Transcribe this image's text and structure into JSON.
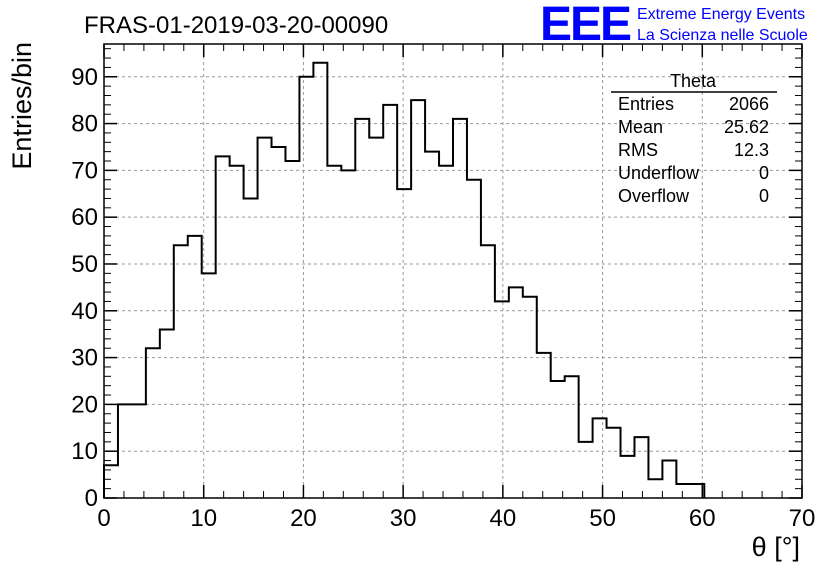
{
  "title": "FRAS-01-2019-03-20-00090",
  "logo": {
    "mark": "EEE",
    "line1": "Extreme Energy Events",
    "line2": "La Scienza nelle Scuole",
    "color": "#0000ff"
  },
  "stats": {
    "name": "Theta",
    "rows": [
      {
        "label": "Entries",
        "value": "2066"
      },
      {
        "label": "Mean",
        "value": "25.62"
      },
      {
        "label": "RMS",
        "value": "12.3"
      },
      {
        "label": "Underflow",
        "value": "0"
      },
      {
        "label": "Overflow",
        "value": "0"
      }
    ]
  },
  "chart_data": {
    "type": "histogram",
    "title": "FRAS-01-2019-03-20-00090",
    "xlabel": "θ [°]",
    "ylabel": "Entries/bin",
    "xlim": [
      0,
      70
    ],
    "ylim": [
      0,
      97
    ],
    "xticks": [
      0,
      10,
      20,
      30,
      40,
      50,
      60,
      70
    ],
    "yticks": [
      0,
      10,
      20,
      30,
      40,
      50,
      60,
      70,
      80,
      90
    ],
    "grid": true,
    "bin_edges": [
      0,
      1.4,
      2.8,
      4.2,
      5.6,
      7,
      8.4,
      9.8,
      11.2,
      12.6,
      14,
      15.4,
      16.8,
      18.2,
      19.6,
      21,
      22.4,
      23.8,
      25.2,
      26.6,
      28,
      29.4,
      30.8,
      32.2,
      33.6,
      35,
      36.4,
      37.8,
      39.2,
      40.6,
      42,
      43.4,
      44.8,
      46.2,
      47.6,
      49,
      50.4,
      51.8,
      53.2,
      54.6,
      56,
      57.4,
      58.8,
      60.2
    ],
    "values": [
      7,
      20,
      20,
      32,
      36,
      54,
      56,
      48,
      73,
      71,
      64,
      77,
      75,
      72,
      90,
      93,
      71,
      70,
      81,
      77,
      84,
      66,
      85,
      74,
      71,
      81,
      68,
      54,
      42,
      45,
      43,
      31,
      25,
      26,
      12,
      17,
      15,
      9,
      13,
      4,
      8,
      3,
      3
    ]
  }
}
